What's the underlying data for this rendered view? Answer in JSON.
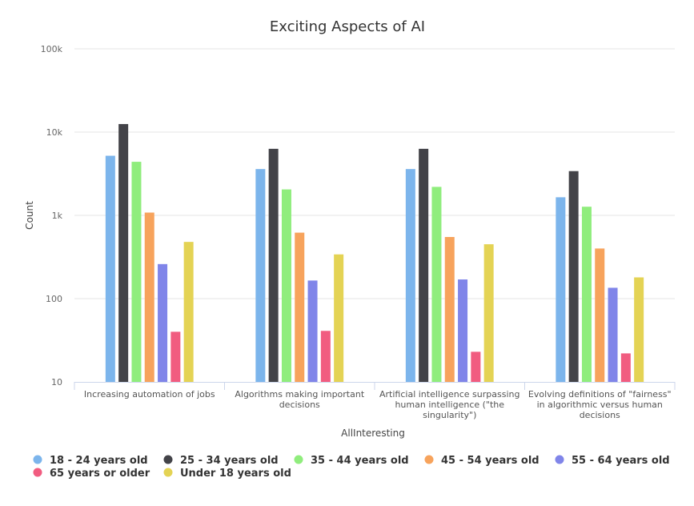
{
  "chart_data": {
    "type": "bar",
    "title": "Exciting Aspects of AI",
    "xlabel": "AllInteresting",
    "ylabel": "Count",
    "yscale": "log",
    "ylim": [
      10,
      100000
    ],
    "y_ticks": [
      {
        "value": 10,
        "label": "10"
      },
      {
        "value": 100,
        "label": "100"
      },
      {
        "value": 1000,
        "label": "1k"
      },
      {
        "value": 10000,
        "label": "10k"
      },
      {
        "value": 100000,
        "label": "100k"
      }
    ],
    "grid": true,
    "legend_position": "bottom",
    "categories": [
      [
        "Increasing automation of jobs"
      ],
      [
        "Algorithms making important",
        "decisions"
      ],
      [
        "Artificial intelligence surpassing",
        "human intelligence (\"the",
        "singularity\")"
      ],
      [
        "Evolving definitions of \"fairness\"",
        "in algorithmic versus human",
        "decisions"
      ]
    ],
    "series": [
      {
        "name": "18 - 24 years old",
        "color": "#7cb5ec",
        "values": [
          5200,
          3600,
          3600,
          1650
        ]
      },
      {
        "name": "25 - 34 years old",
        "color": "#434348",
        "values": [
          12500,
          6300,
          6300,
          3400
        ]
      },
      {
        "name": "35 - 44 years old",
        "color": "#90ed7d",
        "values": [
          4400,
          2050,
          2200,
          1270
        ]
      },
      {
        "name": "45 - 54 years old",
        "color": "#f7a35c",
        "values": [
          1080,
          620,
          550,
          400
        ]
      },
      {
        "name": "55 - 64 years old",
        "color": "#8085e9",
        "values": [
          260,
          165,
          170,
          135
        ]
      },
      {
        "name": "65 years or older",
        "color": "#f15c80",
        "values": [
          40,
          41,
          23,
          22
        ]
      },
      {
        "name": "Under 18 years old",
        "color": "#e4d354",
        "values": [
          480,
          340,
          450,
          180
        ]
      }
    ]
  }
}
